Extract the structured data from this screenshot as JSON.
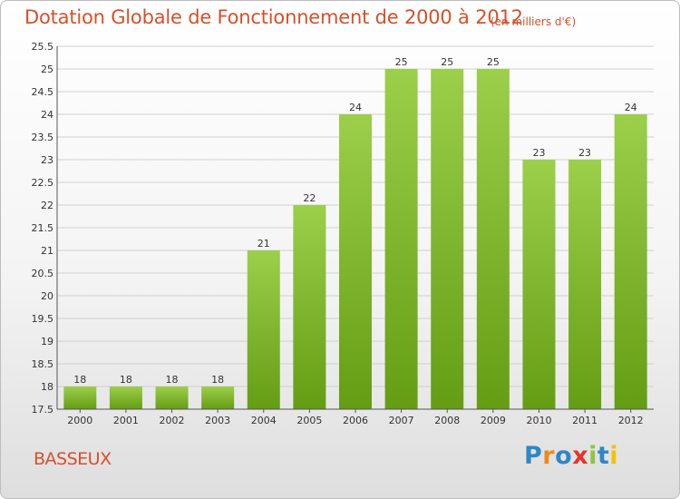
{
  "title": "Dotation Globale de Fonctionnement de 2000 à 2012",
  "subtitle": "(en milliers d'€)",
  "commune": "BASSEUX",
  "logo": {
    "text": "Proxiti",
    "letters": [
      {
        "ch": "P",
        "color": "#2f86c6"
      },
      {
        "ch": "r",
        "color": "#f08a1c"
      },
      {
        "ch": "o",
        "color": "#2f86c6"
      },
      {
        "ch": "x",
        "color": "#e8322b"
      },
      {
        "ch": "i",
        "color": "#8cc63f"
      },
      {
        "ch": "t",
        "color": "#2f86c6"
      },
      {
        "ch": "i",
        "color": "#f2c300"
      }
    ]
  },
  "chart_data": {
    "type": "bar",
    "categories": [
      "2000",
      "2001",
      "2002",
      "2003",
      "2004",
      "2005",
      "2006",
      "2007",
      "2008",
      "2009",
      "2010",
      "2011",
      "2012"
    ],
    "values": [
      18,
      18,
      18,
      18,
      21,
      22,
      24,
      25,
      25,
      25,
      23,
      23,
      24
    ],
    "title": "Dotation Globale de Fonctionnement de 2000 à 2012",
    "subtitle": "(en milliers d'€)",
    "ylim": [
      17.5,
      25.5
    ],
    "yticks": [
      "17.5",
      "18",
      "18.5",
      "19",
      "19.5",
      "20",
      "20.5",
      "21",
      "21.5",
      "22",
      "22.5",
      "23",
      "23.5",
      "24",
      "24.5",
      "25",
      "25.5"
    ],
    "grid": true,
    "bar_color_top": "#9ccf4a",
    "bar_color_bottom": "#649d14"
  }
}
